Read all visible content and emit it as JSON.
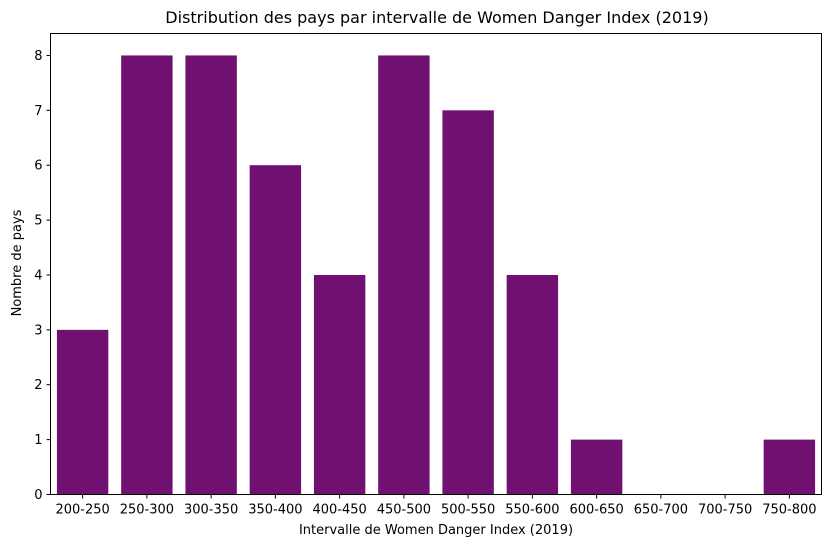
{
  "chart_data": {
    "type": "bar",
    "title": "Distribution des pays par intervalle de Women Danger Index (2019)",
    "xlabel": "Intervalle de Women Danger Index (2019)",
    "ylabel": "Nombre de pays",
    "categories": [
      "200-250",
      "250-300",
      "300-350",
      "350-400",
      "400-450",
      "450-500",
      "500-550",
      "550-600",
      "600-650",
      "650-700",
      "700-750",
      "750-800"
    ],
    "values": [
      3,
      8,
      8,
      6,
      4,
      8,
      7,
      4,
      1,
      0,
      0,
      1
    ],
    "ylim": [
      0,
      8.4
    ],
    "yticks": [
      "0",
      "1",
      "2",
      "3",
      "4",
      "5",
      "6",
      "7",
      "8"
    ],
    "bar_color": "#701070",
    "grid": false,
    "legend": "none"
  }
}
